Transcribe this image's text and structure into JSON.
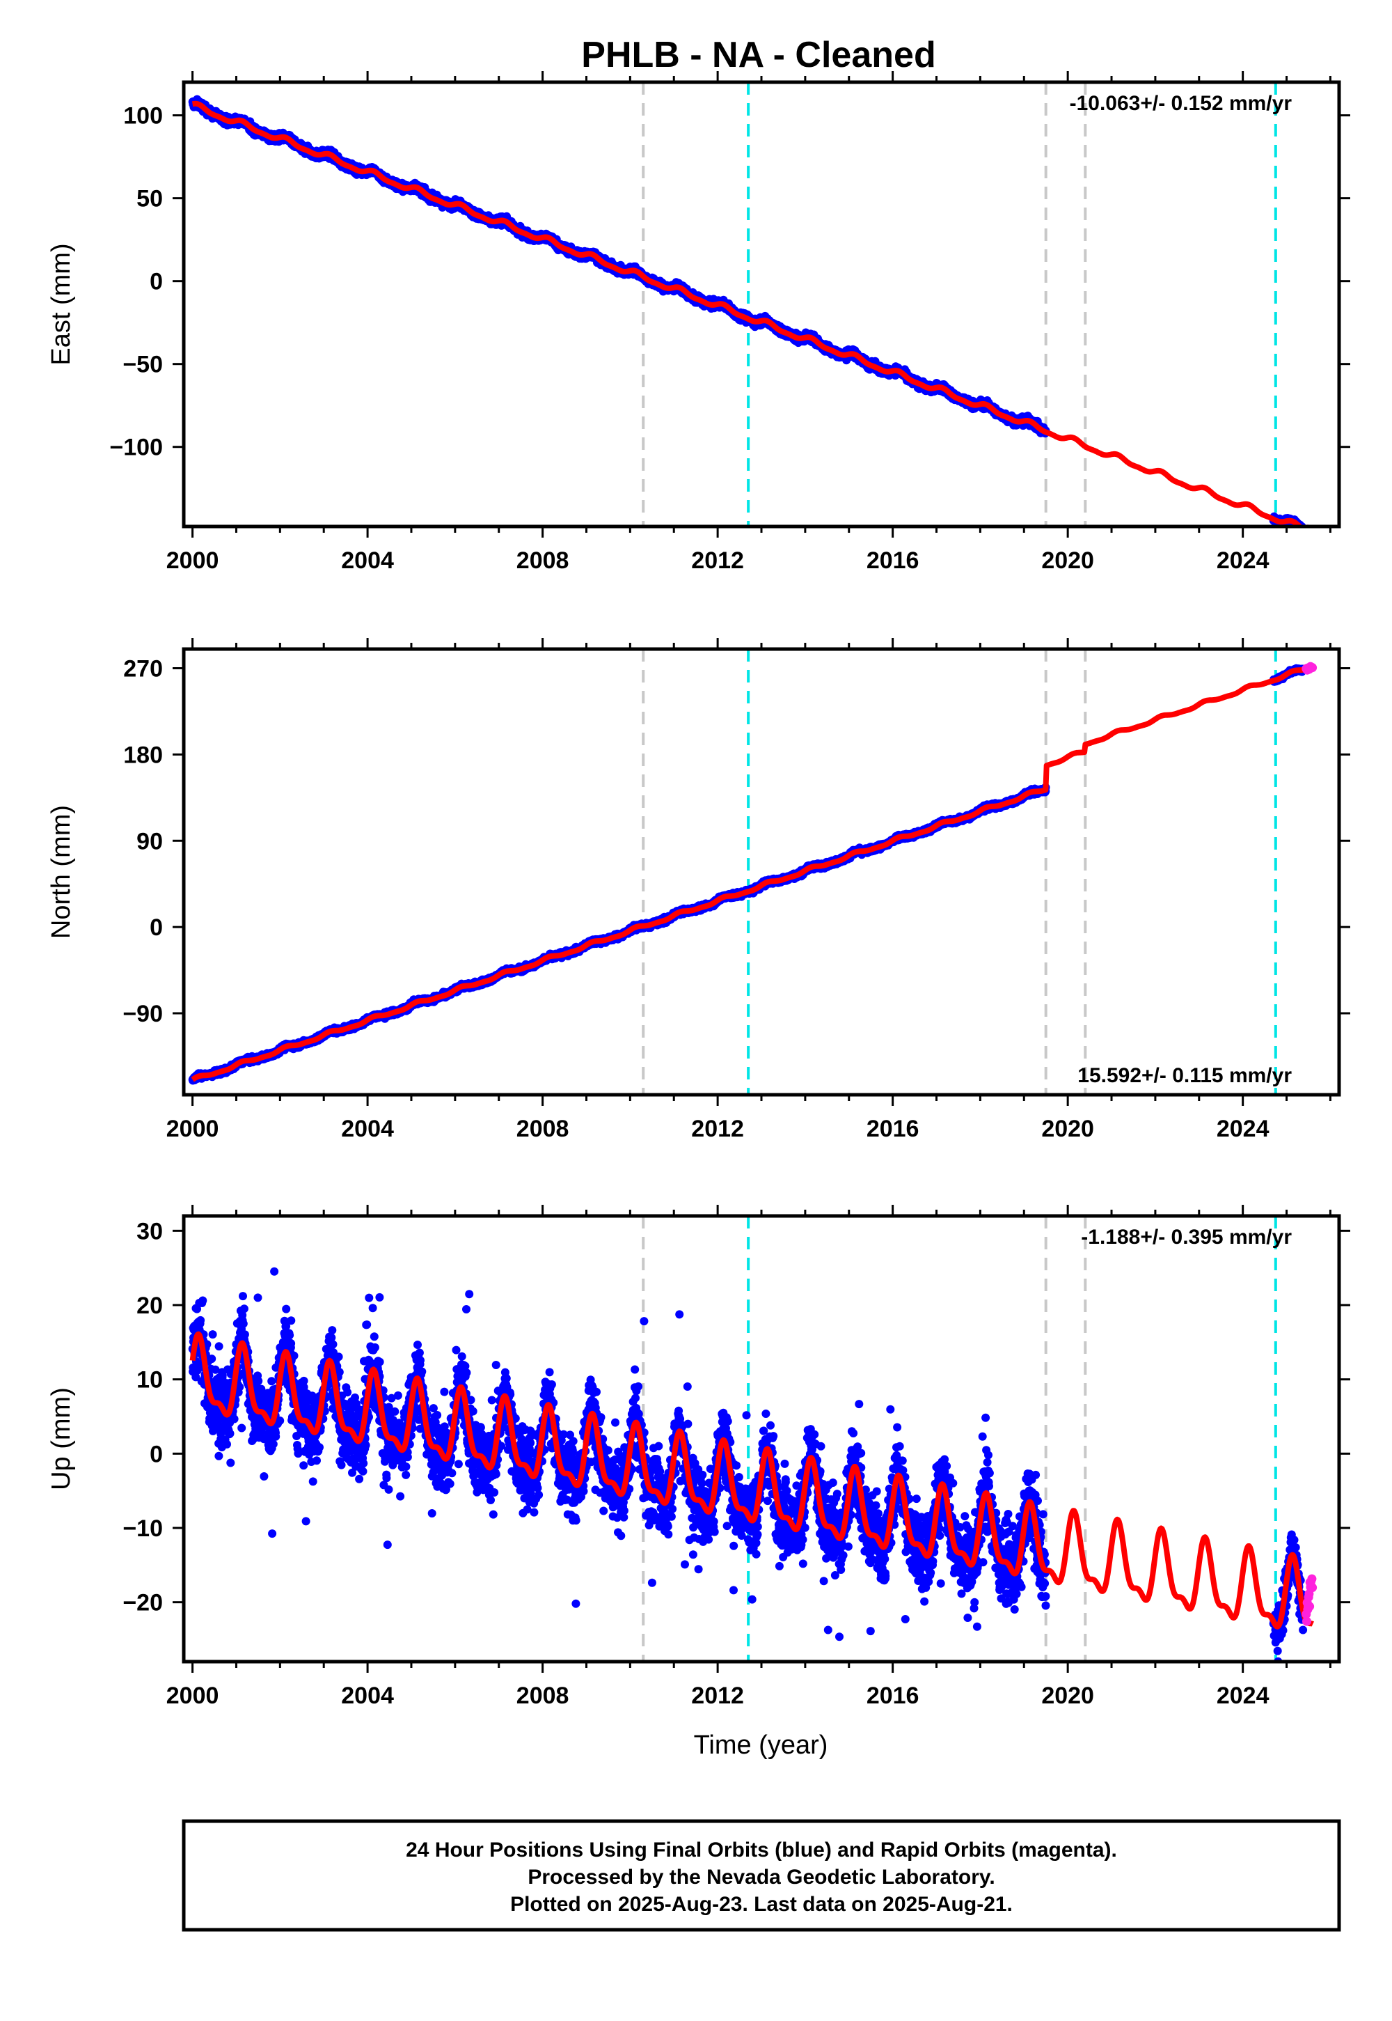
{
  "title": "PHLB  - NA - Cleaned",
  "xlabel": "Time (year)",
  "footer": {
    "lines": [
      "24 Hour Positions Using Final Orbits (blue) and Rapid Orbits (magenta).",
      "Processed by the Nevada Geodetic Laboratory.",
      "Plotted on 2025-Aug-23. Last data on 2025-Aug-21."
    ]
  },
  "colors": {
    "final": "#0000ff",
    "rapid": "#ff22dd",
    "model": "#ff0000",
    "equipment_change": "#c8c8c8",
    "earthquake": "#00e5e5"
  },
  "chart_data": [
    {
      "type": "scatter",
      "name": "east",
      "ylabel": "East (mm)",
      "rate_label": "-10.063+/- 0.152 mm/yr",
      "rate_position": "top-right",
      "xlim": [
        1999.8,
        2026.2
      ],
      "ylim": [
        -148,
        120
      ],
      "xticks": [
        2000,
        2004,
        2008,
        2012,
        2016,
        2020,
        2024
      ],
      "yticks": [
        100,
        50,
        0,
        -50,
        -100
      ],
      "ytick_labels": [
        "100",
        "50",
        "0",
        "−50",
        "−100"
      ],
      "grey_lines": [
        2010.3,
        2019.5,
        2020.4
      ],
      "cyan_lines": [
        2012.7,
        2024.75
      ],
      "model": {
        "t0": 2000.0,
        "v0": 106,
        "slope": -10.063,
        "amp": 1.5,
        "steps": []
      },
      "final_data": {
        "start": 2000.0,
        "end": 2019.5,
        "scatter": 2.2,
        "outliers": 0
      },
      "rapid_data": {
        "start": 2024.6,
        "end": 2025.6,
        "scatter": 1.5
      }
    },
    {
      "type": "scatter",
      "name": "north",
      "ylabel": "North (mm)",
      "rate_label": "15.592+/- 0.115 mm/yr",
      "rate_position": "bottom-right",
      "xlim": [
        1999.8,
        2026.2
      ],
      "ylim": [
        -175,
        290
      ],
      "xticks": [
        2000,
        2004,
        2008,
        2012,
        2016,
        2020,
        2024
      ],
      "yticks": [
        270,
        180,
        90,
        0,
        -90
      ],
      "ytick_labels": [
        "270",
        "180",
        "90",
        "0",
        "−90"
      ],
      "grey_lines": [
        2010.3,
        2019.5,
        2020.4
      ],
      "cyan_lines": [
        2012.7,
        2024.75
      ],
      "model": {
        "t0": 2000.0,
        "v0": -160,
        "slope": 15.592,
        "amp": 1.5,
        "steps": [
          [
            2019.5,
            25
          ],
          [
            2020.4,
            8
          ]
        ]
      },
      "final_data": {
        "start": 2000.0,
        "end": 2019.5,
        "scatter": 2.5,
        "outliers": 0
      },
      "rapid_data": {
        "start": 2024.6,
        "end": 2025.6,
        "scatter": 1.5
      }
    },
    {
      "type": "scatter",
      "name": "up",
      "ylabel": "Up (mm)",
      "rate_label": "-1.188+/- 0.395 mm/yr",
      "rate_position": "top-right",
      "xlim": [
        1999.8,
        2026.2
      ],
      "ylim": [
        -28,
        32
      ],
      "xticks": [
        2000,
        2004,
        2008,
        2012,
        2016,
        2020,
        2024
      ],
      "yticks": [
        30,
        20,
        10,
        0,
        -10,
        -20
      ],
      "ytick_labels": [
        "30",
        "20",
        "10",
        "0",
        "−10",
        "−20"
      ],
      "grey_lines": [
        2010.3,
        2019.5,
        2020.4
      ],
      "cyan_lines": [
        2012.7,
        2024.75
      ],
      "model": {
        "t0": 2000.0,
        "v0": 10,
        "slope": -1.188,
        "amp": 4.5,
        "steps": []
      },
      "final_data": {
        "start": 2000.0,
        "end": 2019.5,
        "scatter": 4.5,
        "outliers": 160
      },
      "rapid_data": {
        "start": 2024.6,
        "end": 2025.6,
        "scatter": 3.0
      }
    }
  ]
}
